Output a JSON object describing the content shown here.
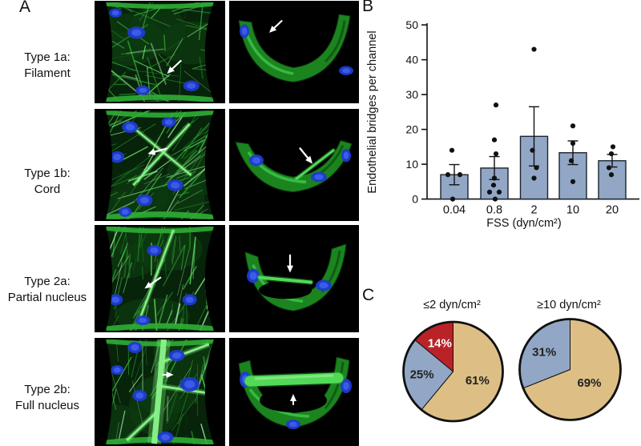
{
  "panel_a": {
    "label": "A",
    "rows": [
      {
        "line1": "Type 1a:",
        "line2": "Filament"
      },
      {
        "line1": "Type 1b:",
        "line2": "Cord"
      },
      {
        "line1": "Type 2a:",
        "line2": "Partial nucleus"
      },
      {
        "line1": "Type 2b:",
        "line2": "Full nucleus"
      }
    ]
  },
  "panel_b": {
    "label": "B"
  },
  "panel_c": {
    "label": "C"
  },
  "chart_data": [
    {
      "id": "endothelial-bridges-bar",
      "type": "bar",
      "panel": "B",
      "title": "",
      "categories": [
        "0.04",
        "0.8",
        "2",
        "10",
        "20"
      ],
      "values": [
        7,
        8.9,
        18,
        13.3,
        11
      ],
      "sem": [
        2.9,
        3.3,
        8.5,
        3.4,
        1.8
      ],
      "points": [
        [
          14,
          7,
          7,
          0
        ],
        [
          27,
          17,
          13,
          6,
          4,
          2,
          2,
          0
        ],
        [
          43,
          14,
          9,
          6
        ],
        [
          21,
          16,
          11,
          5
        ],
        [
          15,
          13,
          9,
          7
        ]
      ],
      "xlabel": "FSS (dyn/cm²)",
      "ylabel": "Endothelial bridges per channel",
      "ylim": [
        0,
        50
      ],
      "yticks": [
        0,
        10,
        20,
        30,
        40,
        50
      ],
      "grid": false,
      "legend": "none",
      "bar_color": "#92a7c5",
      "bar_edge": "#1b2530",
      "point_color": "#111111"
    },
    {
      "id": "pie-low-fss",
      "type": "pie",
      "panel": "C",
      "title": "≤2 dyn/cm²",
      "slices": [
        {
          "label": "61%",
          "value": 61,
          "color": "#ddbf85",
          "label_color": "#222222"
        },
        {
          "label": "25%",
          "value": 25,
          "color": "#92a7c5",
          "label_color": "#222222"
        },
        {
          "label": "14%",
          "value": 14,
          "color": "#b92328",
          "label_color": "#ffffff"
        }
      ]
    },
    {
      "id": "pie-high-fss",
      "type": "pie",
      "panel": "C",
      "title": "≥10 dyn/cm²",
      "slices": [
        {
          "label": "69%",
          "value": 69,
          "color": "#ddbf85",
          "label_color": "#222222"
        },
        {
          "label": "31%",
          "value": 31,
          "color": "#92a7c5",
          "label_color": "#222222"
        }
      ]
    }
  ]
}
